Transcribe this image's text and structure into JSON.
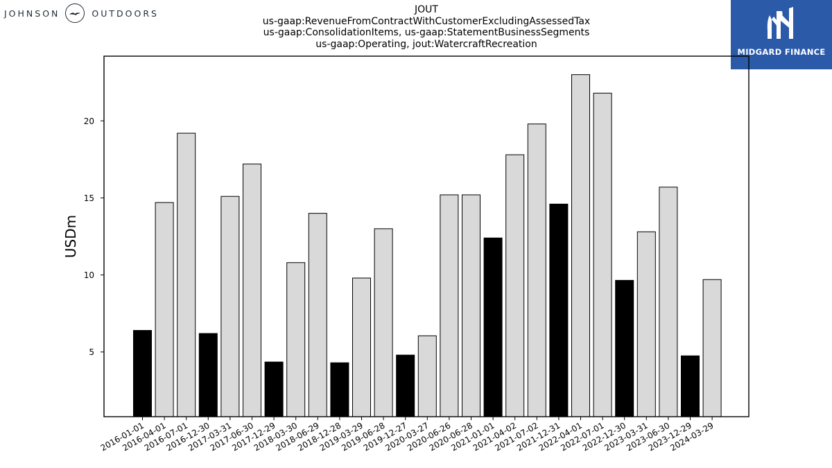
{
  "header": {
    "left_logo_text_1": "JOHNSON",
    "left_logo_text_2": "OUTDOORS",
    "right_logo_text": "MIDGARD FINANCE",
    "title_lines": [
      "JOUT",
      "us-gaap:RevenueFromContractWithCustomerExcludingAssessedTax",
      "us-gaap:ConsolidationItems, us-gaap:StatementBusinessSegments",
      "us-gaap:Operating, jout:WatercraftRecreation"
    ]
  },
  "colors": {
    "bar_quarterly": "#d9d9d9",
    "bar_annual": "#000000",
    "bar_edge": "#000000",
    "logo_bg": "#2a5aa8"
  },
  "chart_data": {
    "type": "bar",
    "ylabel": "USDm",
    "xlabel": "",
    "ylim": [
      0.8,
      24.2
    ],
    "yticks": [
      5,
      10,
      15,
      20
    ],
    "grid": false,
    "categories": [
      "2016-01-01",
      "2016-04-01",
      "2016-07-01",
      "2016-12-30",
      "2017-03-31",
      "2017-06-30",
      "2017-12-29",
      "2018-03-30",
      "2018-06-29",
      "2018-12-28",
      "2019-03-29",
      "2019-06-28",
      "2019-12-27",
      "2020-03-27",
      "2020-06-26",
      "2020-06-28",
      "2021-01-01",
      "2021-04-02",
      "2021-07-02",
      "2021-12-31",
      "2022-04-01",
      "2022-07-01",
      "2022-12-30",
      "2023-03-31",
      "2023-06-30",
      "2023-12-29",
      "2024-03-29"
    ],
    "values": [
      6.4,
      14.7,
      19.2,
      6.2,
      15.1,
      17.2,
      4.35,
      10.8,
      14.0,
      4.3,
      9.8,
      13.0,
      4.8,
      6.05,
      15.2,
      15.2,
      12.4,
      17.8,
      19.8,
      14.6,
      23.0,
      21.8,
      9.65,
      12.8,
      15.7,
      4.75,
      9.7
    ],
    "highlight": [
      true,
      false,
      false,
      true,
      false,
      false,
      true,
      false,
      false,
      true,
      false,
      false,
      true,
      false,
      false,
      false,
      true,
      false,
      false,
      true,
      false,
      false,
      true,
      false,
      false,
      true,
      false
    ]
  }
}
